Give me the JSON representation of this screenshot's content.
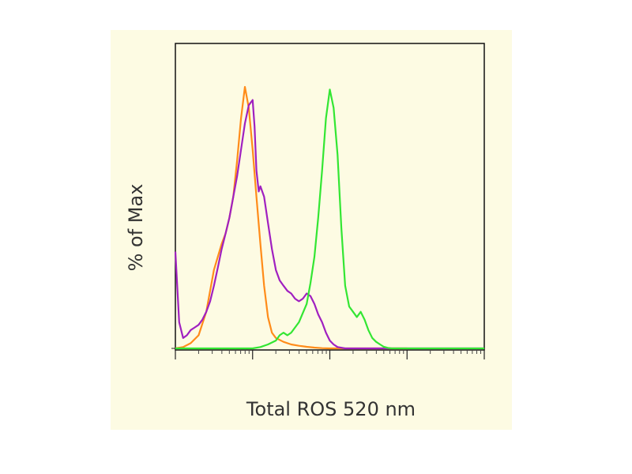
{
  "chart_data": {
    "type": "line",
    "title": "",
    "xlabel": "Total ROS 520 nm",
    "ylabel": "% of Max",
    "x_scale": "log",
    "xlim": [
      1,
      10000
    ],
    "ylim": [
      0,
      100
    ],
    "x_ticks": [
      1,
      10,
      100,
      1000,
      10000
    ],
    "y_ticks": [
      0
    ],
    "grid": false,
    "legend": "none",
    "series": [
      {
        "color": "#ff8c1a",
        "x": [
          1,
          1.26,
          1.58,
          2.0,
          2.51,
          3.16,
          3.98,
          4.47,
          5.01,
          5.62,
          6.31,
          7.08,
          7.94,
          8.91,
          10.0,
          11.2,
          12.6,
          14.1,
          15.8,
          17.8,
          20.0,
          25.1,
          31.6,
          39.8,
          50.1,
          63.1,
          79.4,
          100,
          1000
        ],
        "y": [
          0,
          0.5,
          2,
          5,
          14,
          30,
          40,
          44,
          50,
          58,
          72,
          88,
          100,
          92,
          76,
          58,
          40,
          24,
          12,
          6,
          4,
          2.5,
          1.5,
          1,
          0.6,
          0.3,
          0.1,
          0,
          0
        ]
      },
      {
        "color": "#a020c0",
        "x": [
          1,
          1.12,
          1.26,
          1.41,
          1.58,
          1.78,
          2.0,
          2.24,
          2.51,
          2.82,
          3.16,
          3.55,
          3.98,
          4.47,
          5.01,
          5.62,
          6.31,
          7.08,
          7.94,
          8.91,
          10.0,
          10.6,
          11.2,
          12.0,
          12.6,
          14.1,
          15.8,
          17.8,
          20.0,
          22.4,
          25.1,
          28.2,
          31.6,
          35.5,
          39.8,
          44.7,
          50.1,
          56.2,
          63.1,
          70.8,
          79.4,
          89.1,
          100,
          112,
          126,
          158,
          200,
          316,
          1000,
          10000
        ],
        "y": [
          37,
          10,
          4,
          5,
          7,
          8,
          9,
          11,
          14,
          18,
          24,
          31,
          38,
          44,
          50,
          58,
          66,
          76,
          86,
          93,
          95,
          85,
          68,
          60,
          62,
          58,
          48,
          38,
          30,
          26,
          24,
          22,
          21,
          19,
          18,
          19,
          21,
          20,
          17,
          13,
          10,
          6,
          3,
          1.5,
          0.5,
          0,
          0,
          0,
          0,
          0
        ]
      },
      {
        "color": "#33e633",
        "x": [
          1,
          10,
          12.6,
          15.8,
          20.0,
          22.4,
          25.1,
          28.2,
          31.6,
          39.8,
          50.1,
          56.2,
          63.1,
          70.8,
          79.4,
          89.1,
          100,
          112,
          126,
          141,
          158,
          178,
          200,
          224,
          251,
          282,
          316,
          354,
          398,
          447,
          501,
          562,
          631,
          708,
          794,
          891,
          1000,
          10000
        ],
        "y": [
          0,
          0,
          0.5,
          1.5,
          3,
          5,
          6,
          5,
          6,
          10,
          17,
          25,
          35,
          50,
          68,
          88,
          99,
          92,
          74,
          46,
          24,
          16,
          14,
          12,
          14,
          11,
          7,
          4,
          2.5,
          1.5,
          0.6,
          0.2,
          0,
          0,
          0,
          0,
          0,
          0
        ]
      }
    ]
  }
}
